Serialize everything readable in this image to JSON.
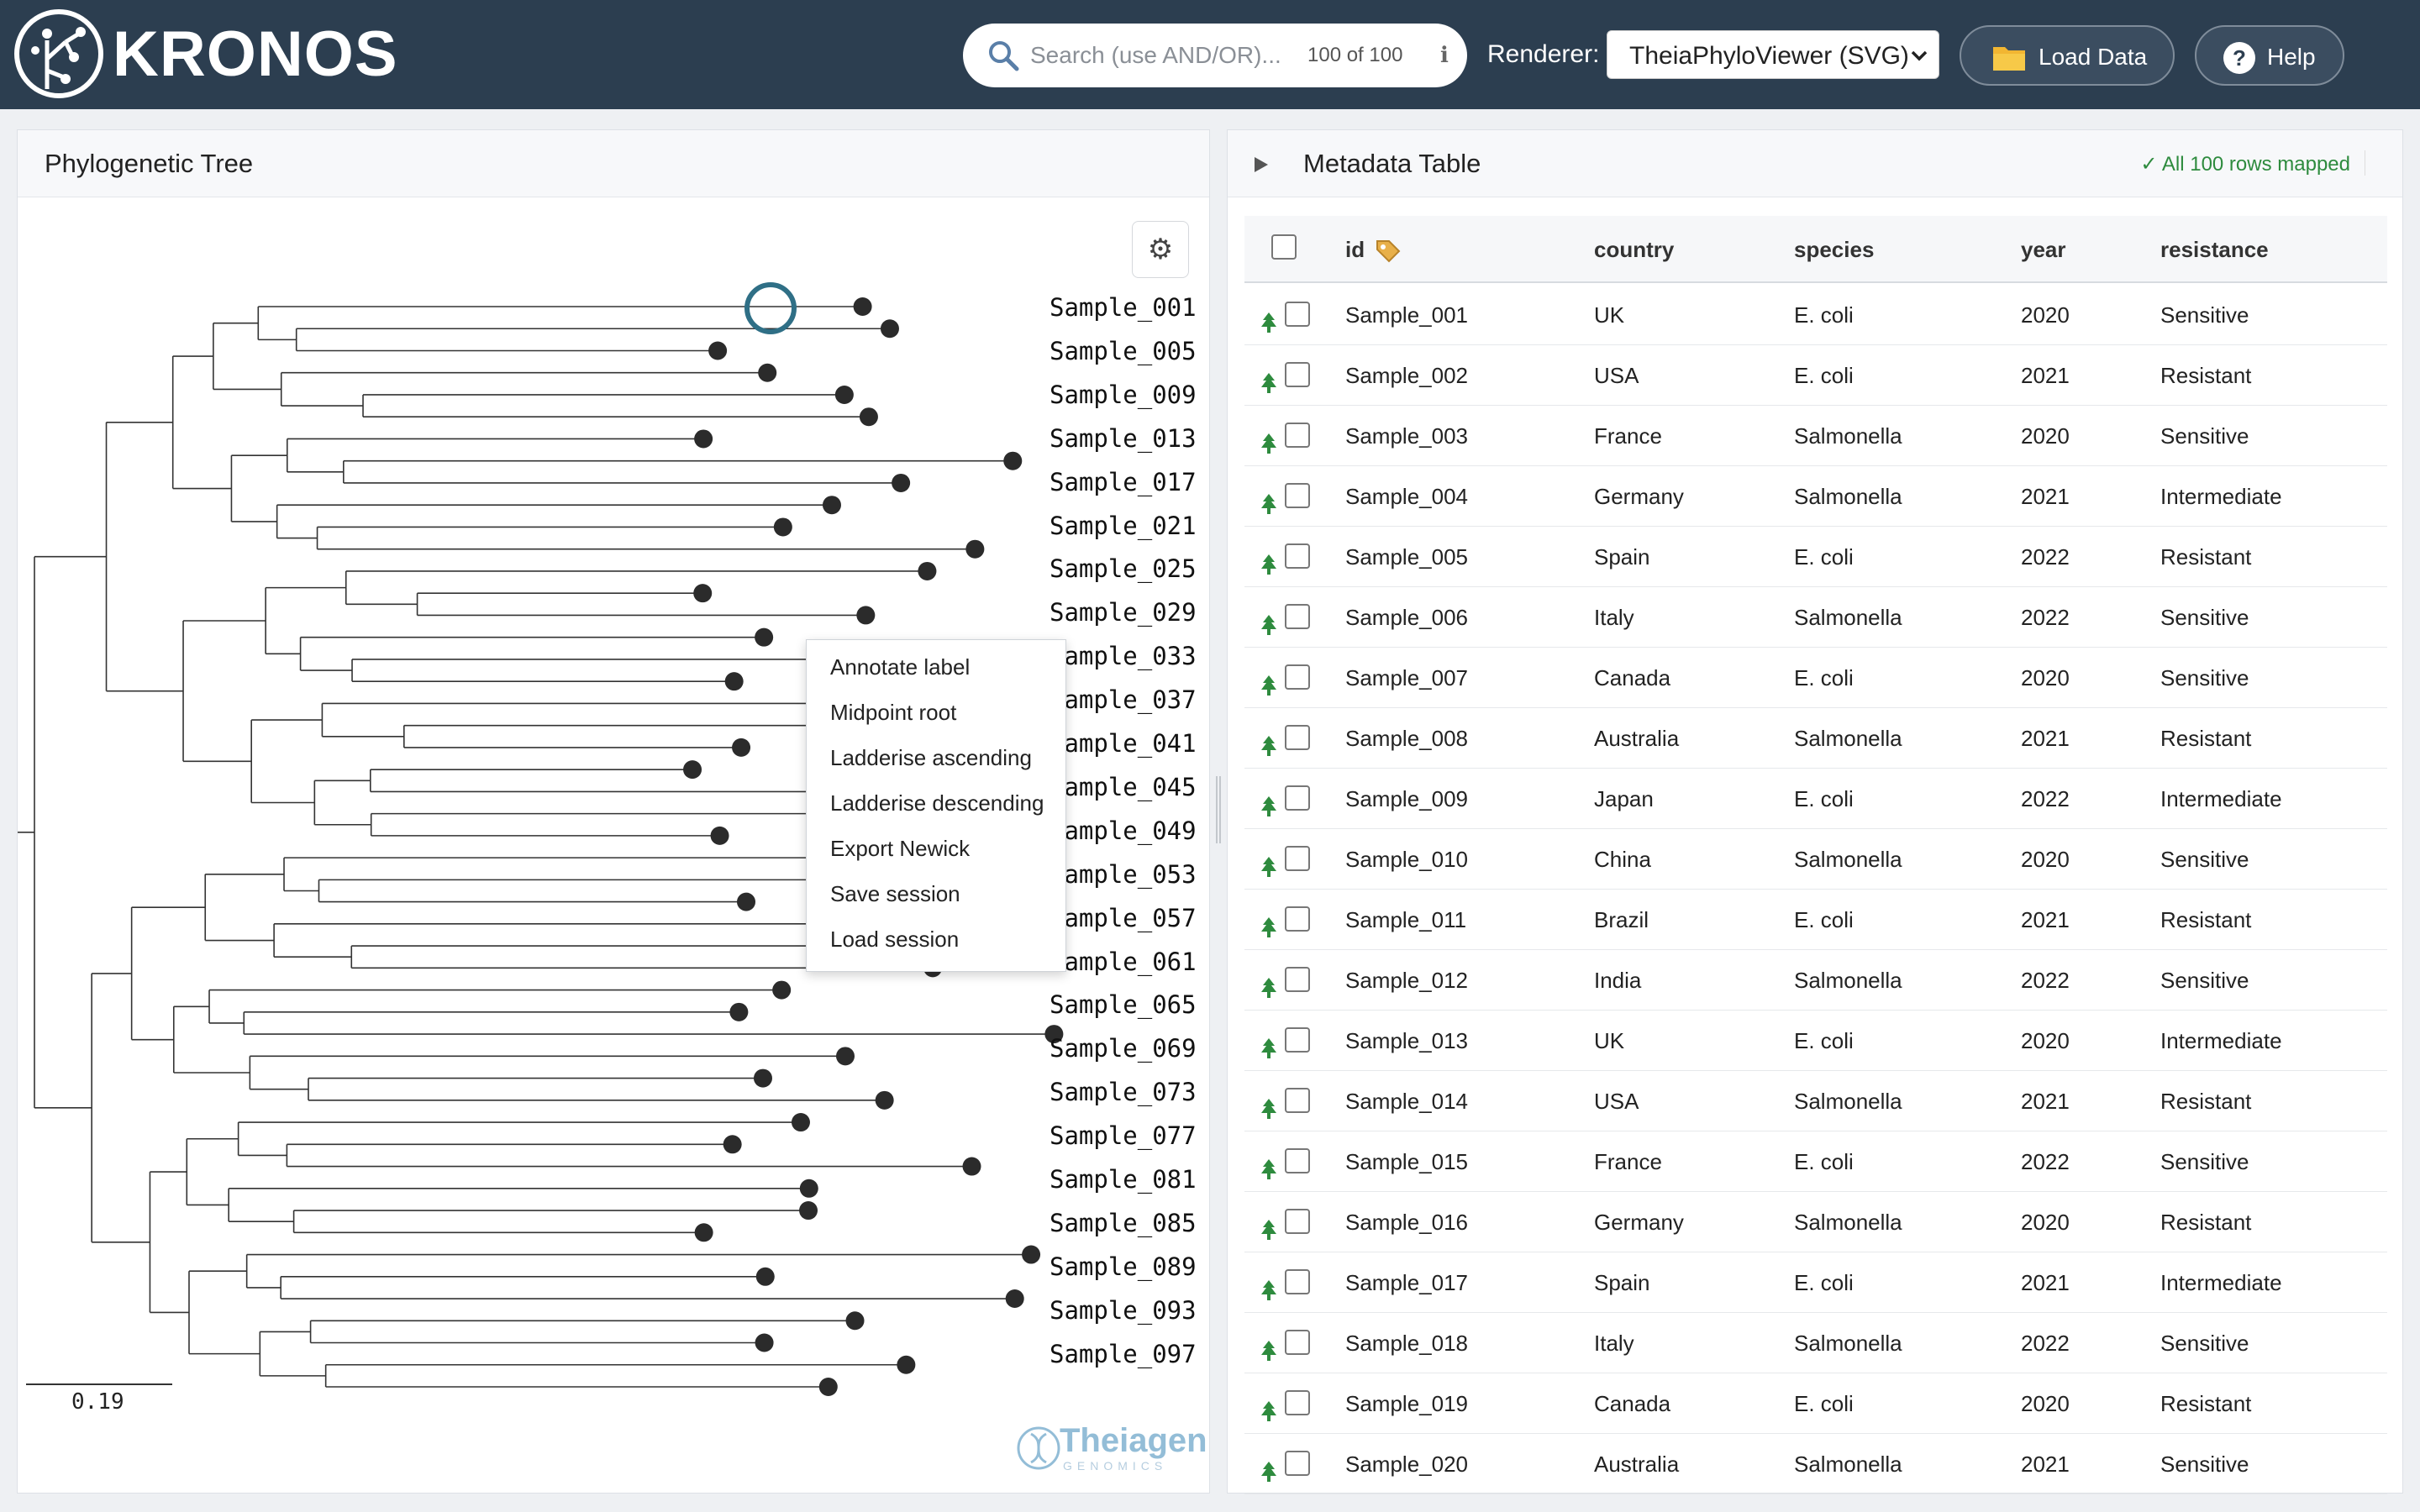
{
  "app": {
    "brand": "KRONOS"
  },
  "search": {
    "placeholder": "Search (use AND/OR)...",
    "count": "100 of 100",
    "info_icon": "ℹ"
  },
  "renderer": {
    "label": "Renderer:",
    "selected": "TheiaPhyloViewer (SVG)"
  },
  "buttons": {
    "load_data": "Load Data",
    "help": "Help",
    "help_glyph": "?"
  },
  "tree_panel": {
    "title": "Phylogenetic Tree",
    "scale": "0.19",
    "leaf_labels": [
      "Sample_001",
      "Sample_005",
      "Sample_009",
      "Sample_013",
      "Sample_017",
      "Sample_021",
      "Sample_025",
      "Sample_029",
      "Sample_033",
      "Sample_037",
      "Sample_041",
      "Sample_045",
      "Sample_049",
      "Sample_053",
      "Sample_057",
      "Sample_061",
      "Sample_065",
      "Sample_069",
      "Sample_073",
      "Sample_077",
      "Sample_081",
      "Sample_085",
      "Sample_089",
      "Sample_093",
      "Sample_097"
    ],
    "context_menu": [
      "Annotate label",
      "Midpoint root",
      "Ladderise ascending",
      "Ladderise descending",
      "Export Newick",
      "Save session",
      "Load session"
    ],
    "watermark": {
      "name": "Theiagen",
      "sub": "GENOMICS"
    }
  },
  "meta_panel": {
    "title": "Metadata Table",
    "mapped": "✓ All 100 rows mapped",
    "columns": [
      "id",
      "country",
      "species",
      "year",
      "resistance"
    ],
    "rows": [
      [
        "Sample_001",
        "UK",
        "E. coli",
        "2020",
        "Sensitive"
      ],
      [
        "Sample_002",
        "USA",
        "E. coli",
        "2021",
        "Resistant"
      ],
      [
        "Sample_003",
        "France",
        "Salmonella",
        "2020",
        "Sensitive"
      ],
      [
        "Sample_004",
        "Germany",
        "Salmonella",
        "2021",
        "Intermediate"
      ],
      [
        "Sample_005",
        "Spain",
        "E. coli",
        "2022",
        "Resistant"
      ],
      [
        "Sample_006",
        "Italy",
        "Salmonella",
        "2022",
        "Sensitive"
      ],
      [
        "Sample_007",
        "Canada",
        "E. coli",
        "2020",
        "Sensitive"
      ],
      [
        "Sample_008",
        "Australia",
        "Salmonella",
        "2021",
        "Resistant"
      ],
      [
        "Sample_009",
        "Japan",
        "E. coli",
        "2022",
        "Intermediate"
      ],
      [
        "Sample_010",
        "China",
        "Salmonella",
        "2020",
        "Sensitive"
      ],
      [
        "Sample_011",
        "Brazil",
        "E. coli",
        "2021",
        "Resistant"
      ],
      [
        "Sample_012",
        "India",
        "Salmonella",
        "2022",
        "Sensitive"
      ],
      [
        "Sample_013",
        "UK",
        "E. coli",
        "2020",
        "Intermediate"
      ],
      [
        "Sample_014",
        "USA",
        "Salmonella",
        "2021",
        "Resistant"
      ],
      [
        "Sample_015",
        "France",
        "E. coli",
        "2022",
        "Sensitive"
      ],
      [
        "Sample_016",
        "Germany",
        "Salmonella",
        "2020",
        "Resistant"
      ],
      [
        "Sample_017",
        "Spain",
        "E. coli",
        "2021",
        "Intermediate"
      ],
      [
        "Sample_018",
        "Italy",
        "Salmonella",
        "2022",
        "Sensitive"
      ],
      [
        "Sample_019",
        "Canada",
        "E. coli",
        "2020",
        "Resistant"
      ],
      [
        "Sample_020",
        "Australia",
        "Salmonella",
        "2021",
        "Sensitive"
      ]
    ]
  },
  "colors": {
    "header_bg": "#2c3e50",
    "accent_green": "#2e8b3e",
    "highlight_ring": "#2f6f86",
    "tip_node": "#2b2b2b"
  }
}
